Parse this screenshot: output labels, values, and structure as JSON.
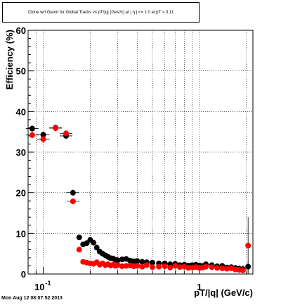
{
  "chart_data": {
    "type": "scatter",
    "title": "Clone wrt Geom for Global Tracks vs pT/|q| (GeV/c) at |  η | <= 1.0 at pT > 0.11",
    "xlabel": "pT/|q| (GeV/c)",
    "ylabel": "Efficiency (%)",
    "xscale": "log",
    "xlim": [
      0.08,
      2.2
    ],
    "ylim": [
      0,
      60
    ],
    "yticks": [
      "0",
      "10",
      "20",
      "30",
      "40",
      "50",
      "60"
    ],
    "xtick_labels": {
      "tenth": "10",
      "tenth_exp": "-1",
      "one": "1"
    },
    "grid": true,
    "colors": {
      "black_series": "#000000",
      "red_series": "#ff0000"
    },
    "series": [
      {
        "color": "black",
        "x": [
          0.085,
          0.1,
          0.12,
          0.14,
          0.155,
          0.17,
          0.18,
          0.19,
          0.2,
          0.21,
          0.22,
          0.23,
          0.24,
          0.25,
          0.26,
          0.27,
          0.28,
          0.29,
          0.3,
          0.32,
          0.34,
          0.36,
          0.38,
          0.4,
          0.43,
          0.46,
          0.5,
          0.55,
          0.6,
          0.65,
          0.7,
          0.75,
          0.8,
          0.85,
          0.9,
          0.95,
          1.0,
          1.05,
          1.1,
          1.2,
          1.3,
          1.4,
          1.5,
          1.6,
          1.7,
          1.8,
          1.9,
          2.05
        ],
        "y": [
          35.8,
          34.3,
          36.0,
          34.0,
          20.0,
          9.0,
          7.3,
          7.6,
          8.4,
          7.7,
          6.5,
          5.5,
          5.0,
          4.6,
          4.2,
          3.9,
          3.8,
          3.5,
          3.4,
          3.6,
          3.7,
          3.3,
          3.1,
          3.2,
          3.0,
          2.9,
          2.8,
          2.6,
          2.6,
          2.4,
          2.5,
          2.2,
          2.3,
          2.1,
          2.2,
          2.3,
          2.1,
          2.0,
          2.4,
          2.2,
          1.9,
          2.0,
          1.6,
          1.7,
          1.5,
          1.3,
          1.2,
          1.8
        ],
        "yerr": [
          0.8,
          0.8,
          0.8,
          0.8,
          0.7,
          0.5,
          0.4,
          0.4,
          0.4,
          0.4,
          0.3,
          0.3,
          0.3,
          0.3,
          0.3,
          0.3,
          0.3,
          0.3,
          0.3,
          0.3,
          0.3,
          0.3,
          0.3,
          0.3,
          0.3,
          0.3,
          0.3,
          0.3,
          0.3,
          0.3,
          0.3,
          0.3,
          0.3,
          0.3,
          0.4,
          0.4,
          0.4,
          0.4,
          0.4,
          0.5,
          0.5,
          0.5,
          0.6,
          0.6,
          0.7,
          0.8,
          1.0,
          1.5
        ]
      },
      {
        "color": "red",
        "x": [
          0.085,
          0.1,
          0.12,
          0.14,
          0.155,
          0.17,
          0.18,
          0.19,
          0.2,
          0.21,
          0.22,
          0.23,
          0.24,
          0.25,
          0.26,
          0.27,
          0.28,
          0.29,
          0.3,
          0.32,
          0.34,
          0.36,
          0.38,
          0.4,
          0.43,
          0.46,
          0.5,
          0.55,
          0.6,
          0.65,
          0.7,
          0.75,
          0.8,
          0.85,
          0.9,
          0.95,
          1.0,
          1.05,
          1.1,
          1.2,
          1.3,
          1.4,
          1.5,
          1.6,
          1.7,
          1.8,
          1.9,
          2.05
        ],
        "y": [
          34.2,
          33.2,
          35.9,
          34.6,
          17.9,
          6.0,
          3.0,
          2.8,
          2.6,
          2.5,
          2.9,
          2.3,
          2.6,
          2.2,
          2.4,
          2.1,
          2.3,
          2.0,
          2.2,
          1.9,
          2.0,
          2.1,
          1.9,
          2.0,
          1.8,
          2.2,
          1.7,
          1.8,
          1.9,
          1.6,
          2.0,
          1.7,
          1.8,
          1.5,
          1.6,
          1.7,
          1.5,
          1.6,
          1.8,
          1.7,
          1.5,
          1.4,
          1.3,
          1.4,
          1.1,
          1.0,
          0.9,
          7.0
        ],
        "yerr": [
          0.8,
          0.8,
          0.8,
          0.8,
          0.7,
          0.4,
          0.3,
          0.3,
          0.3,
          0.3,
          0.3,
          0.3,
          0.3,
          0.3,
          0.3,
          0.3,
          0.3,
          0.3,
          0.3,
          0.3,
          0.3,
          0.3,
          0.3,
          0.3,
          0.3,
          0.3,
          0.3,
          0.3,
          0.3,
          0.3,
          0.3,
          0.3,
          0.3,
          0.3,
          0.3,
          0.3,
          0.3,
          0.4,
          0.4,
          0.4,
          0.4,
          0.4,
          0.5,
          0.5,
          0.5,
          0.6,
          0.7,
          7.0
        ]
      }
    ]
  },
  "timestamp": "Mon Aug 12 08:07:52 2013"
}
